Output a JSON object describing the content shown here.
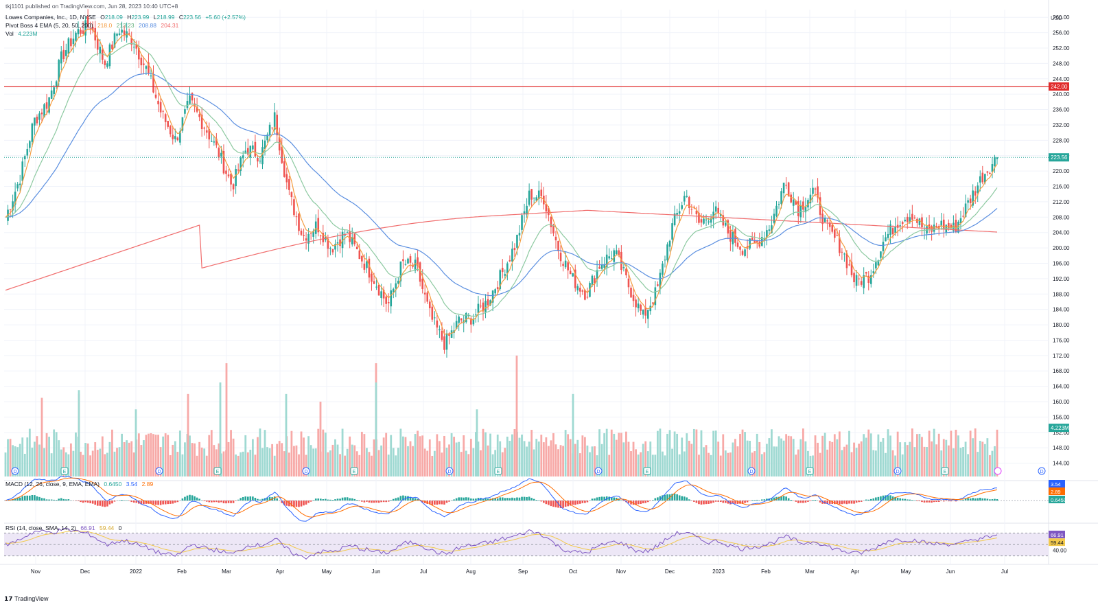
{
  "published": "tkj1101 published on TradingView.com, Jun 28, 2023 10:40 UTC+8",
  "header": {
    "symbol": "Lowes Companies, Inc., 1D, NYSE",
    "ohlc": [
      {
        "label": "O",
        "value": "218.09"
      },
      {
        "label": "H",
        "value": "223.99"
      },
      {
        "label": "L",
        "value": "218.99"
      },
      {
        "label": "C",
        "value": "223.56"
      }
    ],
    "change": "+5.60 (+2.57%)",
    "ema_label": "Pivot Boss 4 EMA (5, 20, 50, 200)",
    "ema_values": [
      "218.0",
      "213.23",
      "208.88",
      "204.31"
    ],
    "vol_label": "Vol",
    "vol_value": "4.223M",
    "macd_label": "MACD (12, 26, close, 9, EMA, EMA)",
    "macd_values": [
      "0.6450",
      "3.54",
      "2.89"
    ],
    "rsi_label": "RSI (14, close, SMA, 14, 2)",
    "rsi_values": [
      "66.91",
      "59.44",
      "0"
    ]
  },
  "currency": "USD",
  "footer": "TradingView",
  "colors": {
    "up": "#26a69a",
    "down": "#ef5350",
    "vol_up": "#9fd9d2",
    "vol_down": "#f7a9a7",
    "ema5": "#f49c3f",
    "ema20": "#8cc9a0",
    "ema50": "#5b8fe0",
    "ema200": "#f06b6b",
    "hline": "#e02b2b",
    "rsi": "#7e57c2",
    "rsi_ma": "#f2c94c",
    "macd": "#2962ff",
    "signal": "#ff6d00",
    "grid": "#f0f3fa",
    "axis_text": "#131722"
  },
  "chart_data": {
    "type": "candlestick",
    "price_axis": {
      "ylim": [
        140,
        262
      ],
      "ticks": [
        "144.00",
        "148.00",
        "152.00",
        "156.00",
        "160.00",
        "164.00",
        "168.00",
        "172.00",
        "176.00",
        "180.00",
        "184.00",
        "188.00",
        "192.00",
        "196.00",
        "200.00",
        "204.00",
        "208.00",
        "212.00",
        "216.00",
        "220.00",
        "224.00",
        "228.00",
        "232.00",
        "236.00",
        "240.00",
        "244.00",
        "248.00",
        "252.00",
        "256.00",
        "260.00"
      ]
    },
    "x_axis_labels": [
      "Nov",
      "Dec",
      "2022",
      "Feb",
      "Mar",
      "Apr",
      "May",
      "Jun",
      "Jul",
      "Aug",
      "Sep",
      "Oct",
      "Nov",
      "Dec",
      "2023",
      "Feb",
      "Mar",
      "Apr",
      "May",
      "Jun",
      "Jul"
    ],
    "price_path": [
      [
        "Nov",
        208
      ],
      [
        "Nov",
        218
      ],
      [
        "Nov",
        233
      ],
      [
        "Dec",
        238
      ],
      [
        "Dec",
        250
      ],
      [
        "Dec",
        256
      ],
      [
        "Dec",
        258
      ],
      [
        "2022",
        248
      ],
      [
        "2022",
        257
      ],
      [
        "2022",
        254
      ],
      [
        "2022",
        246
      ],
      [
        "2022",
        235
      ],
      [
        "Feb",
        228
      ],
      [
        "Feb",
        238
      ],
      [
        "Feb",
        232
      ],
      [
        "Mar",
        225
      ],
      [
        "Mar",
        216
      ],
      [
        "Mar",
        226
      ],
      [
        "Mar",
        224
      ],
      [
        "Mar",
        234
      ],
      [
        "Apr",
        214
      ],
      [
        "Apr",
        203
      ],
      [
        "Apr",
        206
      ],
      [
        "Apr",
        200
      ],
      [
        "May",
        204
      ],
      [
        "May",
        198
      ],
      [
        "May",
        192
      ],
      [
        "May",
        185
      ],
      [
        "Jun",
        196
      ],
      [
        "Jun",
        195
      ],
      [
        "Jun",
        182
      ],
      [
        "Jun",
        175
      ],
      [
        "Jul",
        181
      ],
      [
        "Jul",
        182
      ],
      [
        "Jul",
        186
      ],
      [
        "Aug",
        193
      ],
      [
        "Aug",
        201
      ],
      [
        "Aug",
        214
      ],
      [
        "Aug",
        213
      ],
      [
        "Sep",
        200
      ],
      [
        "Sep",
        192
      ],
      [
        "Sep",
        188
      ],
      [
        "Oct",
        196
      ],
      [
        "Oct",
        199
      ],
      [
        "Oct",
        190
      ],
      [
        "Oct",
        182
      ],
      [
        "Nov",
        189
      ],
      [
        "Nov",
        205
      ],
      [
        "Nov",
        214
      ],
      [
        "Dec",
        206
      ],
      [
        "Dec",
        210
      ],
      [
        "Dec",
        204
      ],
      [
        "Dec",
        200
      ],
      [
        "2023",
        201
      ],
      [
        "2023",
        206
      ],
      [
        "Feb",
        217
      ],
      [
        "Feb",
        210
      ],
      [
        "Feb",
        215
      ],
      [
        "Mar",
        205
      ],
      [
        "Mar",
        200
      ],
      [
        "Mar",
        191
      ],
      [
        "Apr",
        193
      ],
      [
        "Apr",
        202
      ],
      [
        "Apr",
        207
      ],
      [
        "May",
        209
      ],
      [
        "May",
        204
      ],
      [
        "May",
        206
      ],
      [
        "Jun",
        205
      ],
      [
        "Jun",
        212
      ],
      [
        "Jun",
        219
      ],
      [
        "Jun",
        223.56
      ]
    ],
    "last_price": "223.56",
    "resistance_level": "242.00",
    "price_ema_labels": [
      "204.31",
      "208.88",
      "213.23",
      "218.0"
    ],
    "volume_last_label": "4.223M",
    "volume_spikes": [
      [
        "Dec",
        162
      ],
      [
        "2022",
        158
      ],
      [
        "Feb",
        162
      ],
      [
        "Mar",
        165
      ],
      [
        "Jun",
        170
      ],
      [
        "Aug",
        158
      ],
      [
        "Sep",
        172
      ],
      [
        "Oct",
        162
      ],
      [
        "Nov",
        161
      ],
      [
        "Dec",
        163
      ],
      [
        "Mar",
        170
      ],
      [
        "Apr",
        162
      ],
      [
        "May",
        160
      ],
      [
        "Jun",
        165
      ]
    ],
    "event_markers": [
      {
        "month": "Nov",
        "text": "D"
      },
      {
        "month": "Nov",
        "text": "E"
      },
      {
        "month": "2022",
        "text": "D"
      },
      {
        "month": "Mar",
        "text": "E"
      },
      {
        "month": "May",
        "text": "D"
      },
      {
        "month": "May",
        "text": "E"
      },
      {
        "month": "Jul",
        "text": "D"
      },
      {
        "month": "Aug",
        "text": "E"
      },
      {
        "month": "Oct",
        "text": "D"
      },
      {
        "month": "Nov",
        "text": "E"
      },
      {
        "month": "Feb",
        "text": "D"
      },
      {
        "month": "Mar",
        "text": "E"
      },
      {
        "month": "Apr",
        "text": "D"
      },
      {
        "month": "May",
        "text": "E"
      },
      {
        "month": "Jun",
        "text": "D"
      }
    ],
    "macd_last_labels": [
      "3.54",
      "2.89",
      "0.6450"
    ],
    "rsi_ylim": [
      20,
      80
    ],
    "rsi_band": [
      30,
      70
    ],
    "rsi_last_labels": [
      "66.91",
      "59.44"
    ],
    "rsi_axis_tick": "40.00",
    "grid": true
  }
}
